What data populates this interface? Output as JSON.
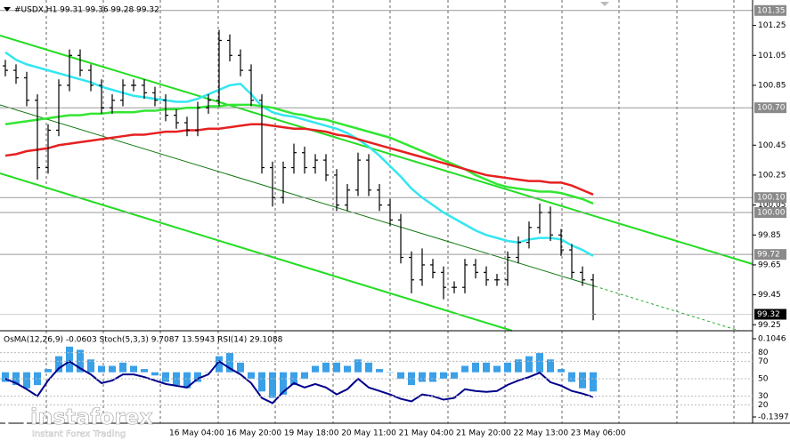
{
  "chart_data": {
    "type": "ohlc",
    "title": "#USDX,H1  99.31 99.36 99.28 99.32",
    "color": "#000000",
    "open": [
      100.98,
      100.95,
      100.9,
      100.75,
      100.3,
      100.55,
      100.85,
      101.05,
      100.95,
      100.85,
      100.7,
      100.75,
      100.85,
      100.85,
      100.8,
      100.75,
      100.65,
      100.6,
      100.55,
      100.7,
      100.75,
      101.15,
      101.05,
      100.95,
      100.75,
      100.3,
      100.1,
      100.3,
      100.4,
      100.3,
      100.35,
      100.25,
      100.05,
      100.15,
      100.35,
      100.15,
      100.05,
      99.95,
      99.7,
      99.55,
      99.65,
      99.6,
      99.5,
      99.5,
      99.65,
      99.6,
      99.55,
      99.55,
      99.7,
      99.8,
      99.9,
      100.0,
      99.85,
      99.75,
      99.6,
      99.55
    ],
    "high": [
      101.02,
      100.99,
      100.94,
      100.79,
      100.59,
      100.89,
      101.09,
      101.09,
      100.99,
      100.89,
      100.79,
      100.89,
      100.89,
      100.89,
      100.84,
      100.79,
      100.69,
      100.64,
      100.74,
      100.79,
      101.22,
      101.19,
      101.09,
      100.99,
      100.79,
      100.34,
      100.34,
      100.46,
      100.44,
      100.39,
      100.39,
      100.29,
      100.19,
      100.4,
      100.39,
      100.19,
      100.09,
      99.99,
      99.74,
      99.76,
      99.69,
      99.64,
      99.54,
      99.69,
      99.69,
      99.64,
      99.59,
      99.74,
      99.84,
      99.94,
      100.06,
      100.04,
      99.89,
      99.79,
      99.64,
      99.59
    ],
    "low": [
      100.91,
      100.86,
      100.71,
      100.22,
      100.26,
      100.51,
      100.81,
      100.91,
      100.81,
      100.66,
      100.66,
      100.71,
      100.81,
      100.76,
      100.71,
      100.61,
      100.56,
      100.51,
      100.51,
      100.66,
      100.71,
      101.01,
      100.91,
      100.71,
      100.26,
      100.04,
      100.06,
      100.26,
      100.26,
      100.26,
      100.21,
      100.01,
      100.01,
      100.11,
      100.11,
      100.01,
      99.91,
      99.66,
      99.46,
      99.51,
      99.56,
      99.42,
      99.46,
      99.46,
      99.56,
      99.51,
      99.51,
      99.51,
      99.66,
      99.76,
      99.86,
      99.81,
      99.71,
      99.56,
      99.51,
      99.28
    ],
    "close": [
      100.95,
      100.9,
      100.75,
      100.3,
      100.55,
      100.85,
      101.05,
      100.95,
      100.85,
      100.7,
      100.75,
      100.85,
      100.85,
      100.8,
      100.75,
      100.65,
      100.6,
      100.55,
      100.7,
      100.75,
      101.15,
      101.05,
      100.95,
      100.75,
      100.3,
      100.1,
      100.3,
      100.4,
      100.3,
      100.35,
      100.25,
      100.05,
      100.15,
      100.35,
      100.15,
      100.05,
      99.95,
      99.7,
      99.55,
      99.65,
      99.6,
      99.5,
      99.5,
      99.65,
      99.6,
      99.55,
      99.55,
      99.7,
      99.8,
      99.9,
      100.0,
      99.85,
      99.75,
      99.6,
      99.55,
      99.32
    ],
    "moving_averages": [
      {
        "color": "#33e6f0",
        "values": [
          101.07,
          101.02,
          100.99,
          100.97,
          100.95,
          100.93,
          100.91,
          100.89,
          100.87,
          100.84,
          100.82,
          100.8,
          100.78,
          100.77,
          100.76,
          100.75,
          100.74,
          100.74,
          100.76,
          100.79,
          100.82,
          100.85,
          100.86,
          100.79,
          100.71,
          100.67,
          100.65,
          100.64,
          100.62,
          100.6,
          100.58,
          100.56,
          100.53,
          100.49,
          100.44,
          100.38,
          100.31,
          100.24,
          100.16,
          100.1,
          100.05,
          100.0,
          99.96,
          99.92,
          99.88,
          99.85,
          99.83,
          99.81,
          99.8,
          99.82,
          99.83,
          99.83,
          99.82,
          99.78,
          99.75,
          99.71
        ]
      },
      {
        "color": "#33e633",
        "values": [
          100.59,
          100.6,
          100.61,
          100.62,
          100.63,
          100.64,
          100.65,
          100.65,
          100.66,
          100.66,
          100.67,
          100.67,
          100.67,
          100.68,
          100.68,
          100.69,
          100.69,
          100.7,
          100.7,
          100.71,
          100.71,
          100.72,
          100.72,
          100.72,
          100.71,
          100.7,
          100.68,
          100.66,
          100.65,
          100.63,
          100.62,
          100.6,
          100.58,
          100.56,
          100.54,
          100.52,
          100.5,
          100.47,
          100.44,
          100.41,
          100.38,
          100.35,
          100.32,
          100.29,
          100.25,
          100.22,
          100.19,
          100.17,
          100.16,
          100.15,
          100.14,
          100.14,
          100.13,
          100.11,
          100.09,
          100.06
        ]
      },
      {
        "color": "#e62020",
        "values": [
          100.38,
          100.39,
          100.41,
          100.42,
          100.43,
          100.45,
          100.46,
          100.47,
          100.48,
          100.49,
          100.5,
          100.51,
          100.52,
          100.52,
          100.53,
          100.54,
          100.54,
          100.55,
          100.55,
          100.56,
          100.56,
          100.57,
          100.58,
          100.59,
          100.59,
          100.58,
          100.57,
          100.56,
          100.56,
          100.55,
          100.54,
          100.52,
          100.51,
          100.49,
          100.47,
          100.45,
          100.43,
          100.41,
          100.39,
          100.37,
          100.35,
          100.33,
          100.31,
          100.29,
          100.27,
          100.25,
          100.24,
          100.23,
          100.22,
          100.21,
          100.21,
          100.2,
          100.2,
          100.18,
          100.15,
          100.12
        ]
      }
    ],
    "ylim": [
      99.21,
      101.42
    ],
    "yticks": [
      101.25,
      101.05,
      100.85,
      100.45,
      100.25,
      100.05,
      99.85,
      99.65,
      99.45,
      99.25
    ],
    "levels": [
      101.35,
      {
        "value": 100.7,
        "label": "100.70"
      },
      {
        "value": 100.1,
        "label": "100.10"
      },
      {
        "value": 100,
        "label": "100.00"
      },
      99.72
    ],
    "last_price": 99.32,
    "categories": [
      "16 May 04:00",
      "16 May 20:00",
      "19 May 18:00",
      "20 May 11:00",
      "21 May 04:00",
      "21 May 20:00",
      "22 May 13:00",
      "23 May 06:00"
    ],
    "indicator": {
      "title": "OsMA(12,26,9) -0.0603  Stoch(5,3,3) 9.7087 13.5943  RSI(14) 29.1088",
      "osma_color": "#3aa0e8",
      "osma": [
        -0.03,
        -0.04,
        -0.05,
        -0.04,
        0.01,
        0.05,
        0.08,
        0.07,
        0.04,
        0.02,
        0.02,
        0.03,
        0.02,
        0.01,
        -0.01,
        -0.03,
        -0.04,
        -0.05,
        -0.03,
        0.0,
        0.05,
        0.06,
        0.03,
        -0.02,
        -0.06,
        -0.08,
        -0.07,
        -0.04,
        -0.02,
        0.02,
        0.03,
        0.03,
        0.02,
        0.04,
        0.03,
        0.01,
        0.0,
        -0.02,
        -0.04,
        -0.03,
        -0.03,
        -0.02,
        -0.02,
        0.02,
        0.03,
        0.03,
        0.02,
        0.03,
        0.04,
        0.05,
        0.06,
        0.04,
        0.01,
        -0.03,
        -0.05,
        -0.06
      ],
      "osma_ylim": [
        -0.1397,
        0.1046
      ],
      "osma_ticks": [
        0.1046,
        -0.1397
      ],
      "rsi_color": "#00008b",
      "rsi": [
        50,
        45,
        38,
        30,
        48,
        62,
        70,
        62,
        55,
        45,
        48,
        55,
        55,
        52,
        48,
        44,
        42,
        40,
        50,
        55,
        70,
        62,
        55,
        45,
        28,
        22,
        35,
        45,
        40,
        44,
        40,
        32,
        38,
        50,
        40,
        36,
        32,
        27,
        24,
        32,
        30,
        26,
        28,
        38,
        36,
        35,
        36,
        43,
        48,
        52,
        57,
        46,
        42,
        36,
        33,
        29
      ],
      "level_ylim": [
        0,
        100
      ],
      "level_ticks": [
        80,
        70,
        50,
        30,
        20
      ]
    },
    "branding": {
      "name": "instaforex",
      "tagline": "Instant Forex Trading"
    }
  }
}
